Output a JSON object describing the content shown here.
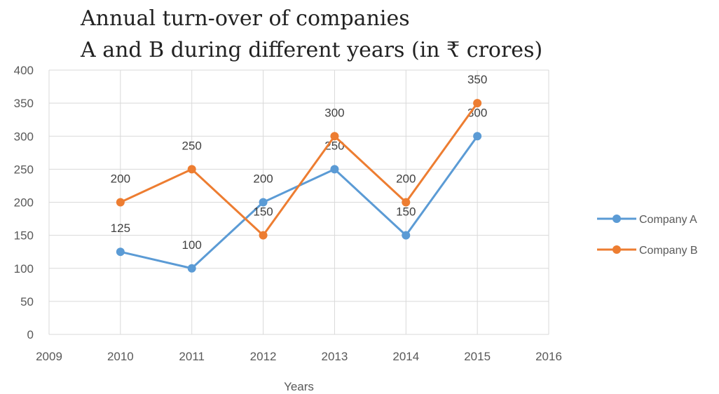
{
  "chart_data": {
    "type": "line",
    "title": "Annual turn-over of companies",
    "subtitle": "A and B during different years (in ₹ crores)",
    "xlabel": "Years",
    "ylabel": "",
    "xlim": [
      2009,
      2016
    ],
    "ylim": [
      0,
      400
    ],
    "xticks": [
      2009,
      2010,
      2011,
      2012,
      2013,
      2014,
      2015,
      2016
    ],
    "yticks": [
      0,
      50,
      100,
      150,
      200,
      250,
      300,
      350,
      400
    ],
    "grid": true,
    "legend": "right",
    "x": [
      2010,
      2011,
      2012,
      2013,
      2014,
      2015
    ],
    "series": [
      {
        "name": "Company A",
        "color": "#5b9bd5",
        "values": [
          125,
          100,
          200,
          250,
          150,
          300
        ]
      },
      {
        "name": "Company B",
        "color": "#ed7d31",
        "values": [
          200,
          250,
          150,
          300,
          200,
          350
        ]
      }
    ]
  }
}
